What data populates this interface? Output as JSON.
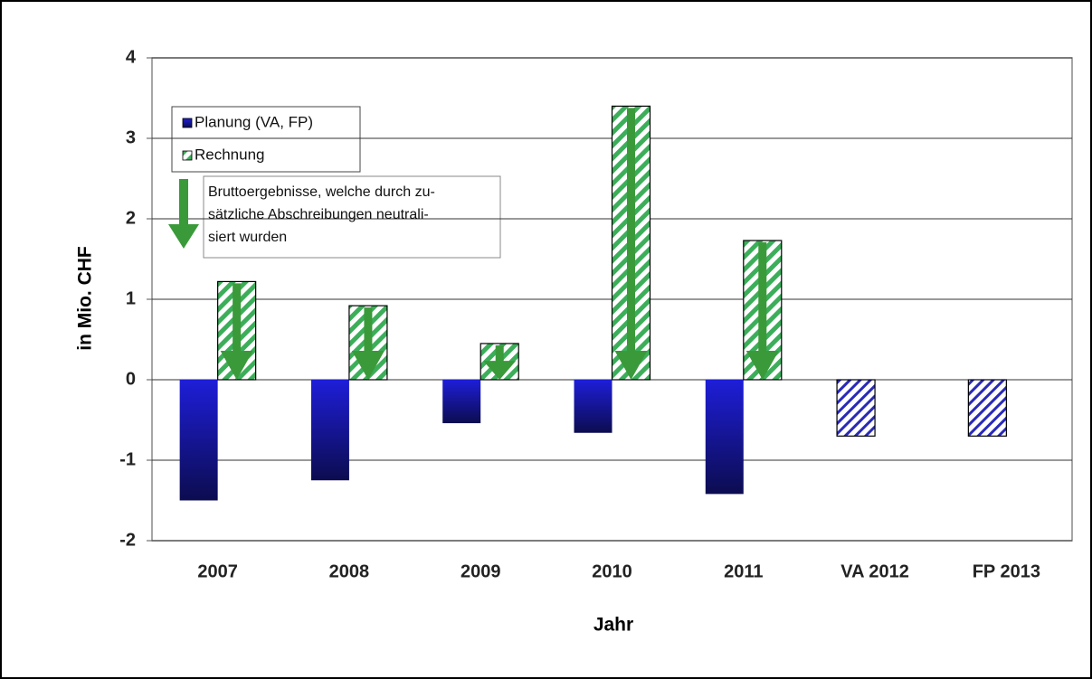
{
  "chart_data": {
    "type": "bar",
    "categories": [
      "2007",
      "2008",
      "2009",
      "2010",
      "2011",
      "VA 2012",
      "FP 2013"
    ],
    "series": [
      {
        "name": "Planung (VA, FP)",
        "color": "#1a1ab0",
        "values": [
          -1.5,
          -1.25,
          -0.54,
          -0.66,
          -1.42,
          -0.7,
          -0.7
        ],
        "patterns": [
          "gradient",
          "gradient",
          "gradient",
          "gradient",
          "gradient",
          "hatch",
          "hatch"
        ]
      },
      {
        "name": "Rechnung",
        "color": "#2e9e4a",
        "values": [
          1.22,
          0.92,
          0.45,
          3.4,
          1.73,
          null,
          null
        ],
        "patterns": [
          "hatch",
          "hatch",
          "hatch",
          "hatch",
          "hatch",
          null,
          null
        ]
      }
    ],
    "annotation": {
      "lines": [
        "Bruttoergebnisse, welche durch zu-",
        "sätzliche Abschreibungen neutrali-",
        "siert wurden"
      ],
      "arrow_color": "#3a9a3a"
    },
    "xlabel": "Jahr",
    "ylabel": "in Mio. CHF",
    "ylim": [
      -2,
      4
    ],
    "yticks": [
      -2,
      -1,
      0,
      1,
      2,
      3,
      4
    ],
    "grid": true
  }
}
